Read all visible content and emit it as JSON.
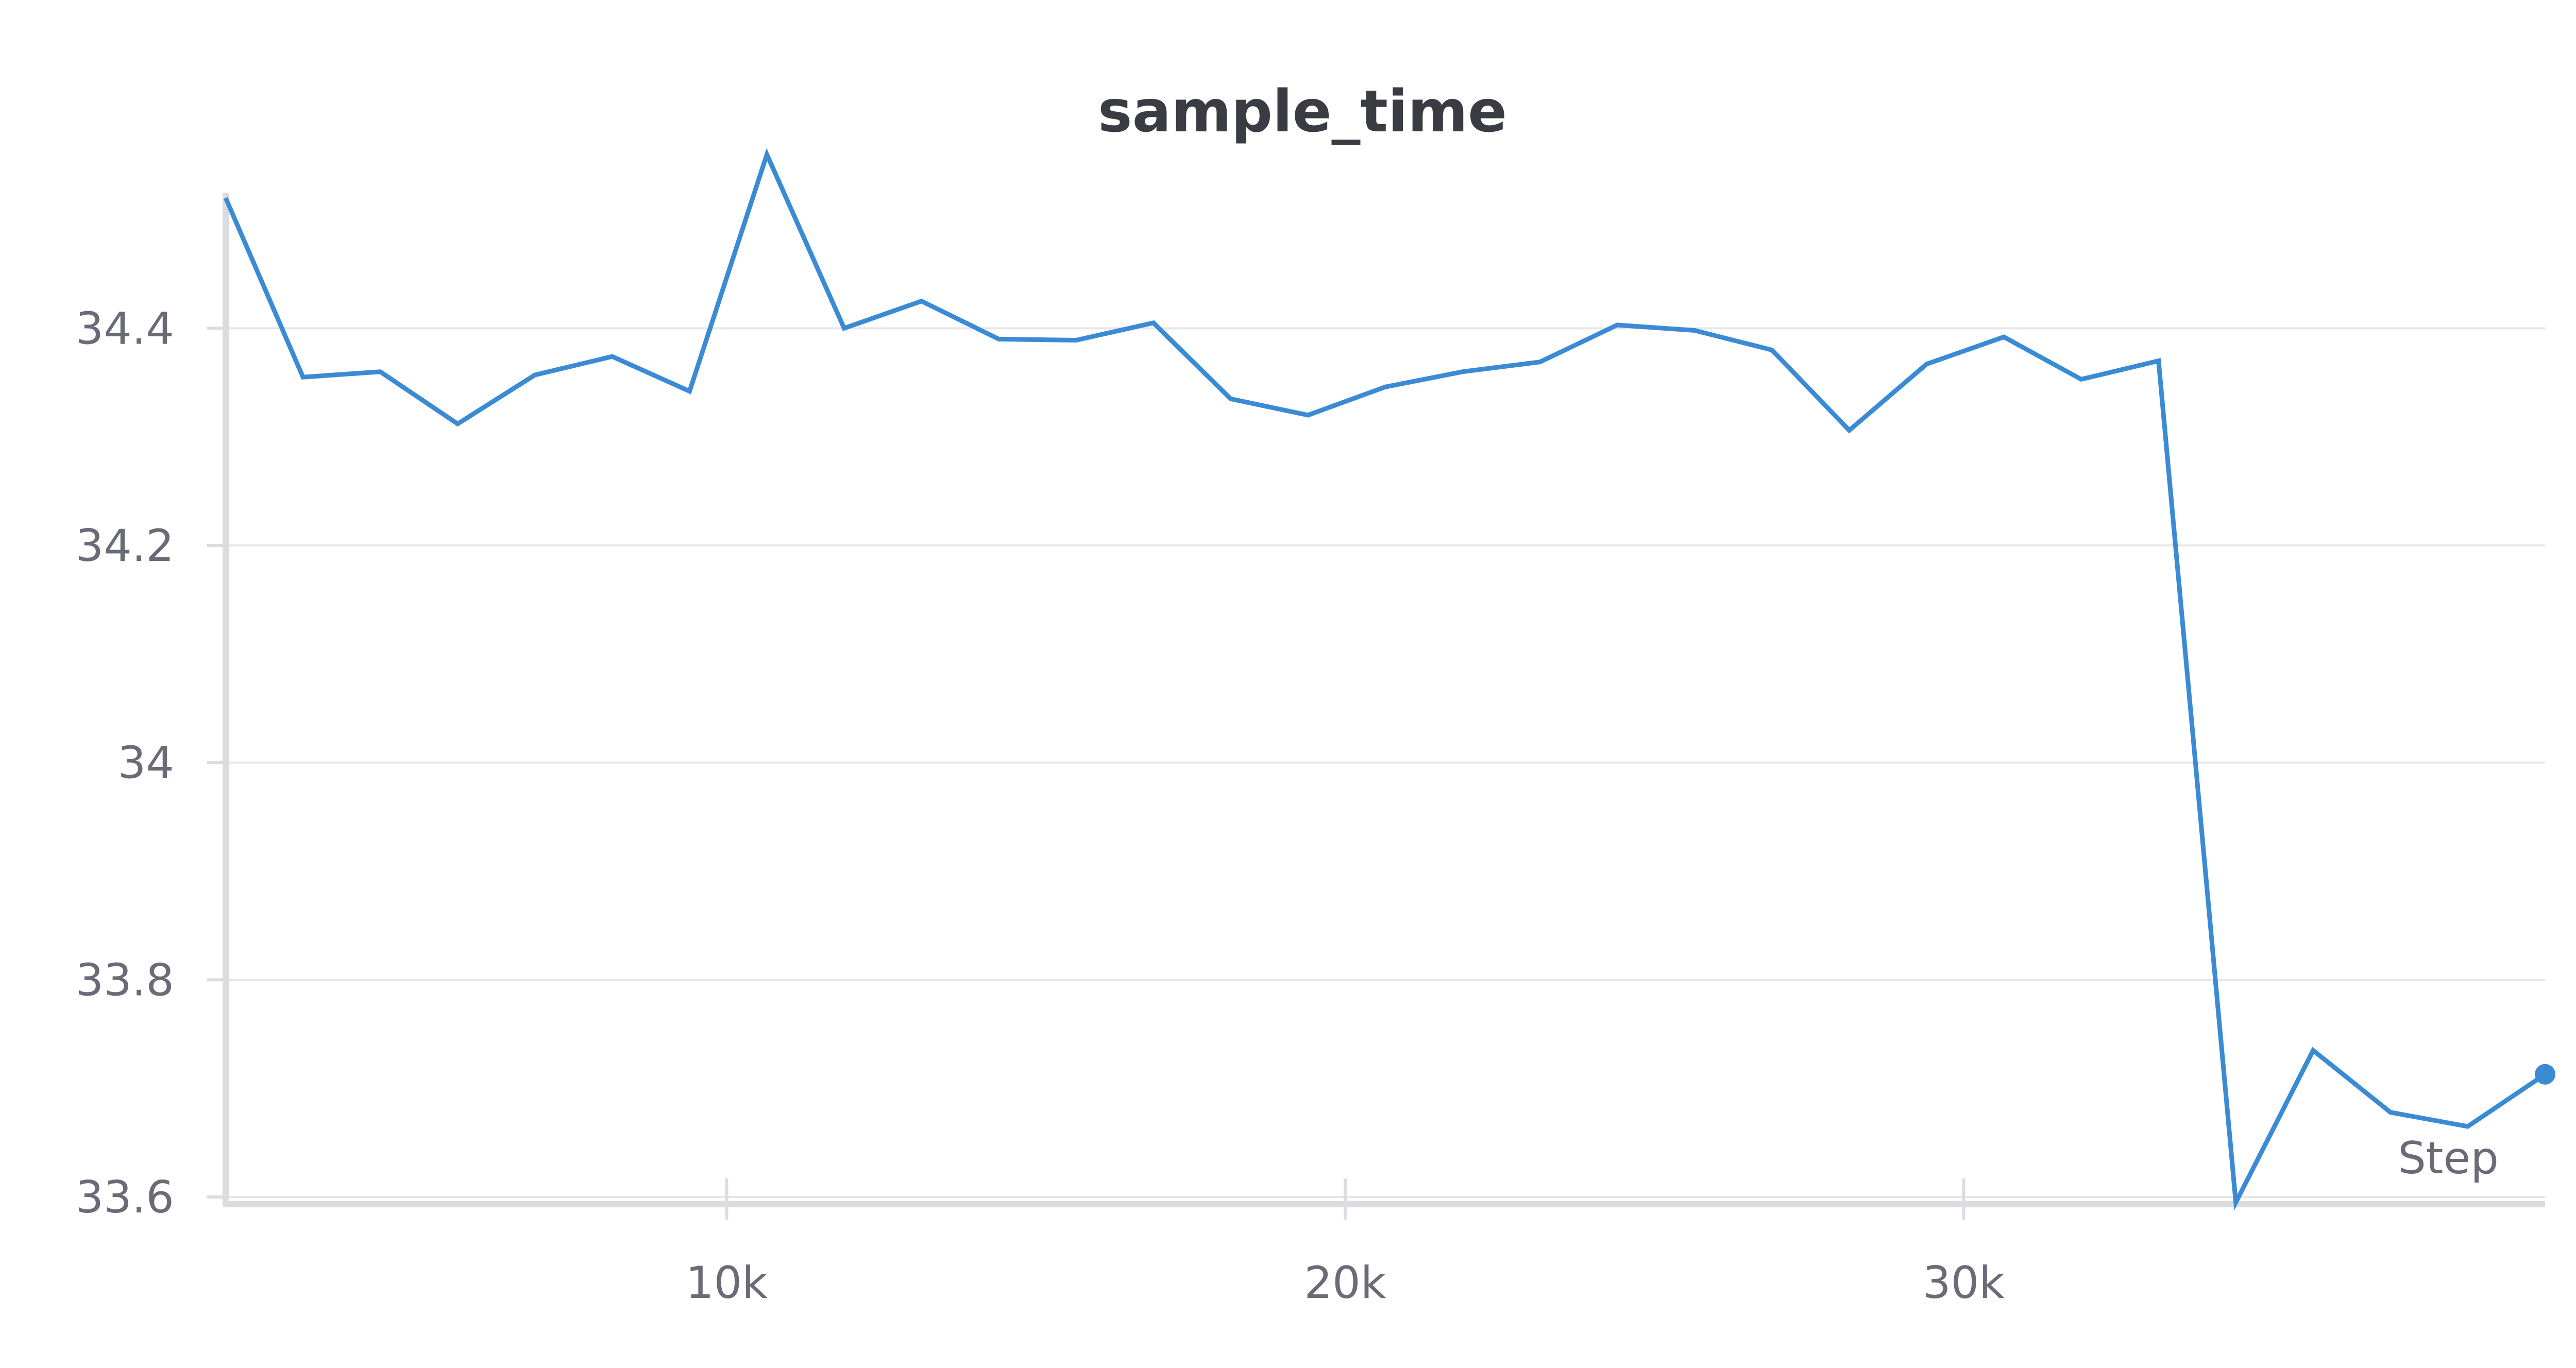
{
  "chart_data": {
    "type": "line",
    "title": "sample_time",
    "xlabel": "Step",
    "ylabel": "",
    "xlim": [
      1900,
      39400
    ],
    "ylim": [
      33.6,
      34.56
    ],
    "grid": true,
    "legend": "none",
    "line_color": "#3b8bd4",
    "x_ticks": [
      {
        "value": 10000,
        "label": "10k"
      },
      {
        "value": 20000,
        "label": "20k"
      },
      {
        "value": 30000,
        "label": "30k"
      }
    ],
    "y_ticks": [
      {
        "value": 33.6,
        "label": "33.6"
      },
      {
        "value": 33.8,
        "label": "33.8"
      },
      {
        "value": 34.0,
        "label": "34"
      },
      {
        "value": 34.2,
        "label": "34.2"
      },
      {
        "value": 34.4,
        "label": "34.4"
      }
    ],
    "series": [
      {
        "x": [
          1900,
          3150,
          4400,
          5650,
          6900,
          8150,
          9400,
          10650,
          11900,
          13150,
          14400,
          15650,
          16900,
          18150,
          19400,
          20650,
          21900,
          23150,
          24400,
          25650,
          26900,
          28150,
          29400,
          30650,
          31900,
          33150,
          34400,
          35650,
          36900,
          38150,
          39400
        ],
        "values": [
          34.52,
          34.355,
          34.36,
          34.312,
          34.357,
          34.374,
          34.342,
          34.56,
          34.4,
          34.425,
          34.39,
          34.389,
          34.405,
          34.335,
          34.32,
          34.346,
          34.36,
          34.369,
          34.403,
          34.398,
          34.38,
          34.306,
          34.367,
          34.392,
          34.353,
          34.37,
          33.595,
          33.735,
          33.678,
          33.665,
          33.713
        ]
      }
    ]
  }
}
